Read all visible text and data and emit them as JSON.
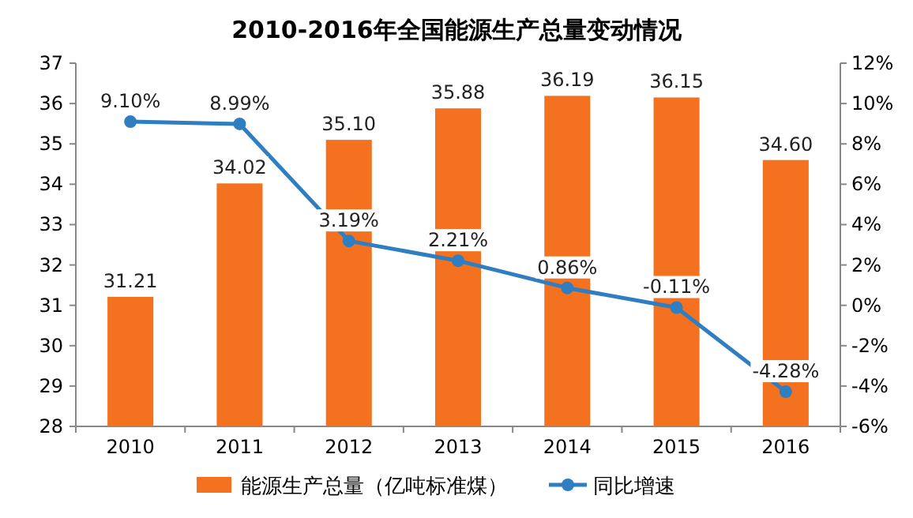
{
  "chart_data": {
    "type": "bar",
    "title": "2010-2016年全国能源生产总量变动情况",
    "categories": [
      "2010",
      "2011",
      "2012",
      "2013",
      "2014",
      "2015",
      "2016"
    ],
    "series": [
      {
        "name": "能源生产总量（亿吨标准煤）",
        "color": "#f4711f",
        "values": [
          31.21,
          34.02,
          35.1,
          35.88,
          36.19,
          36.15,
          34.6
        ],
        "value_labels": [
          "31.21",
          "34.02",
          "35.10",
          "35.88",
          "36.19",
          "36.15",
          "34.60"
        ]
      },
      {
        "name": "同比增速",
        "type": "line",
        "axis": "y2",
        "color": "#2f7ec1",
        "values": [
          9.1,
          8.99,
          3.19,
          2.21,
          0.86,
          -0.11,
          -4.28
        ],
        "value_labels": [
          "9.10%",
          "8.99%",
          "3.19%",
          "2.21%",
          "0.86%",
          "-0.11%",
          "-4.28%"
        ]
      }
    ],
    "ylim": [
      28,
      37
    ],
    "yticks": [
      28,
      29,
      30,
      31,
      32,
      33,
      34,
      35,
      36,
      37
    ],
    "y2lim": [
      -6,
      12
    ],
    "y2ticks": [
      {
        "value": -6,
        "label": "-6%"
      },
      {
        "value": -4,
        "label": "-4%"
      },
      {
        "value": -2,
        "label": "-2%"
      },
      {
        "value": 0,
        "label": "0%"
      },
      {
        "value": 2,
        "label": "2%"
      },
      {
        "value": 4,
        "label": "4%"
      },
      {
        "value": 6,
        "label": "6%"
      },
      {
        "value": 8,
        "label": "8%"
      },
      {
        "value": 10,
        "label": "10%"
      },
      {
        "value": 12,
        "label": "12%"
      }
    ],
    "marker": "circle",
    "legend": "bottom"
  }
}
